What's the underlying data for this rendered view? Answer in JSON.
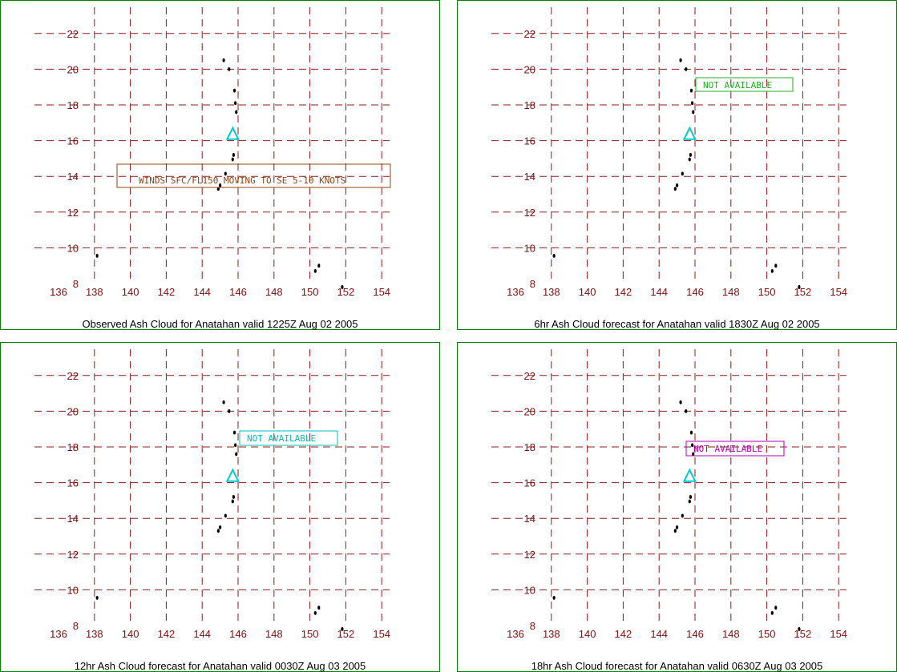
{
  "x_ticks": [
    "136",
    "138",
    "140",
    "142",
    "144",
    "146",
    "148",
    "150",
    "152",
    "154"
  ],
  "y_ticks": [
    "8",
    "10",
    "12",
    "14",
    "16",
    "18",
    "20",
    "22"
  ],
  "colors": {
    "grid": "#8b1a1a",
    "tick_label": "#7a1010",
    "panel_border": "#0a7d0a",
    "volcano_marker": "#00cccc",
    "islands": "#000000"
  },
  "volcano_icon": "triangle-icon",
  "panels": [
    {
      "caption": "Observed Ash Cloud for Anatahan valid 1225Z Aug 02 2005",
      "annotation": "WINDS SFC/FL150 MOVING TO SE 5-10 KNOTS",
      "annotation_color": "#8b4513"
    },
    {
      "caption": "6hr Ash Cloud forecast for Anatahan valid 1830Z Aug 02 2005",
      "annotation": "NOT AVAILABLE",
      "annotation_color": "#22b022"
    },
    {
      "caption": "12hr Ash Cloud forecast for Anatahan valid 0030Z Aug 03 2005",
      "annotation": "NOT AVAILABLE",
      "annotation_color": "#00bcbc"
    },
    {
      "caption": "18hr Ash Cloud forecast for Anatahan valid 0630Z Aug 03 2005",
      "annotation": "NOT AVAILABLE",
      "annotation_color": "#b000b0"
    }
  ],
  "chart_data": {
    "type": "map",
    "x_range": [
      136,
      154
    ],
    "y_range": [
      8,
      23
    ],
    "volcano": {
      "lon": 145.7,
      "lat": 16.35
    },
    "islands": [
      {
        "lon": 138.15,
        "lat": 9.55
      },
      {
        "lon": 145.2,
        "lat": 20.5
      },
      {
        "lon": 145.5,
        "lat": 20.0
      },
      {
        "lon": 145.8,
        "lat": 18.8
      },
      {
        "lon": 145.85,
        "lat": 18.1
      },
      {
        "lon": 145.9,
        "lat": 17.6
      },
      {
        "lon": 145.75,
        "lat": 15.2
      },
      {
        "lon": 145.7,
        "lat": 14.95
      },
      {
        "lon": 145.3,
        "lat": 14.15
      },
      {
        "lon": 145.0,
        "lat": 13.5
      },
      {
        "lon": 144.9,
        "lat": 13.3
      },
      {
        "lon": 150.5,
        "lat": 9.0
      },
      {
        "lon": 150.3,
        "lat": 8.7
      },
      {
        "lon": 151.8,
        "lat": 7.8
      }
    ]
  }
}
